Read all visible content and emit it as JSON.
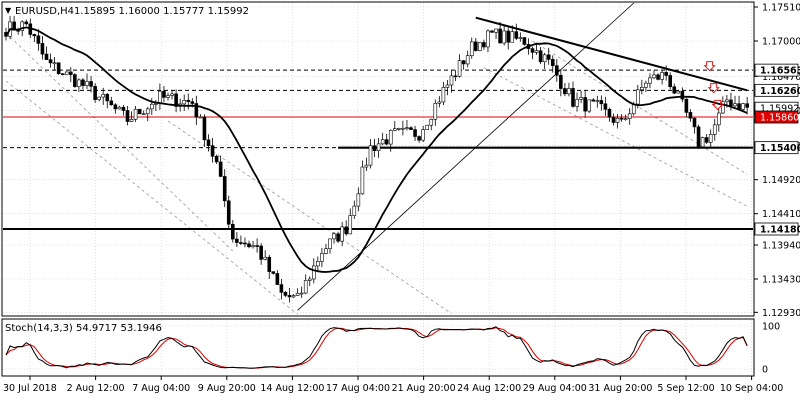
{
  "header": {
    "symbol": "EURUSD,H4",
    "ohlc": "1.15895 1.16000 1.15777 1.15992"
  },
  "colors": {
    "bull": "#ffffff",
    "bear": "#000000",
    "ma": "#000000",
    "stoch_main": "#000000",
    "stoch_signal": "#e00000",
    "current_price_line": "#e00000",
    "grid": "#c8c8c8",
    "support_resistance": "#000000"
  },
  "chart_data": [
    {
      "type": "candlestick",
      "title": "EURUSD,H4",
      "ylim": [
        1.1289,
        1.1757
      ],
      "x_tick_labels": [
        "30 Jul 2018",
        "2 Aug 12:00",
        "7 Aug 04:00",
        "9 Aug 20:00",
        "14 Aug 12:00",
        "17 Aug 04:00",
        "21 Aug 20:00",
        "24 Aug 12:00",
        "29 Aug 04:00",
        "31 Aug 20:00",
        "5 Sep 12:00",
        "10 Sep 04:00"
      ],
      "y_tick_labels": [
        "1.17510",
        "1.17000",
        "1.16470",
        "1.15960",
        "1.15430",
        "1.14920",
        "1.14410",
        "1.13940",
        "1.13430",
        "1.12930"
      ],
      "y_ticks": [
        1.1751,
        1.17,
        1.1647,
        1.1596,
        1.1543,
        1.1492,
        1.1441,
        1.1394,
        1.1343,
        1.1293
      ],
      "price_labels": [
        {
          "text": "1.16563",
          "value": 1.16563,
          "style": "black"
        },
        {
          "text": "1.16260",
          "value": 1.1626,
          "style": "black"
        },
        {
          "text": "1.15992",
          "value": 1.15992,
          "style": "current"
        },
        {
          "text": "1.15860",
          "value": 1.1586,
          "style": "red"
        },
        {
          "text": "1.15400",
          "value": 1.154,
          "style": "black"
        },
        {
          "text": "1.14180",
          "value": 1.1418,
          "style": "black"
        }
      ],
      "horizontal_levels": [
        {
          "value": 1.16563,
          "style": "dashed"
        },
        {
          "value": 1.1626,
          "style": "dashed"
        },
        {
          "value": 1.154,
          "style": "dashed"
        },
        {
          "value": 1.1418,
          "style": "solid-thick"
        },
        {
          "value": 1.1586,
          "style": "red"
        }
      ],
      "support_segment": {
        "value": 1.154,
        "from_index": 82
      },
      "series": [
        {
          "name": "EURUSD",
          "candles_count": 184
        },
        {
          "name": "moving average"
        }
      ]
    },
    {
      "type": "line",
      "title": "Stoch(14,3,3) 54.9717 53.1946",
      "ylim": [
        0,
        100
      ],
      "y_tick_labels": [
        "100",
        "0"
      ],
      "series": [
        {
          "name": "main",
          "value": 54.9717
        },
        {
          "name": "signal",
          "value": 53.1946
        }
      ]
    }
  ]
}
